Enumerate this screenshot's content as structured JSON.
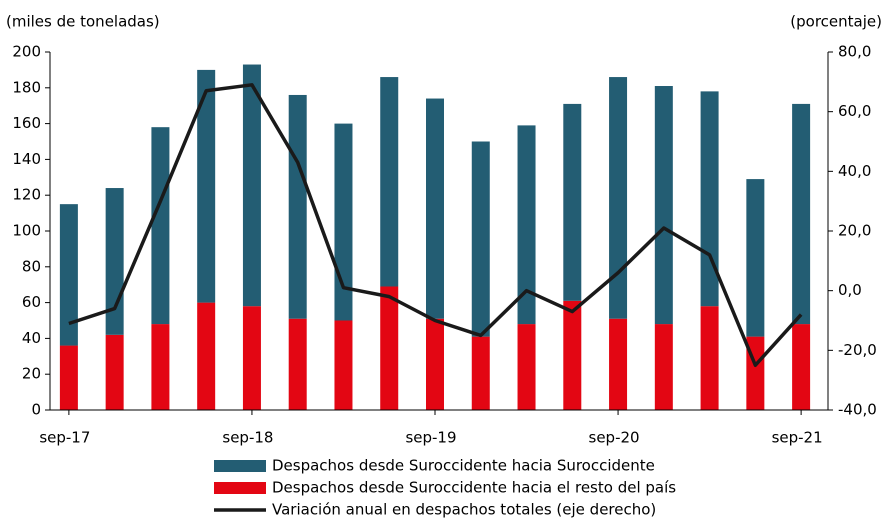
{
  "chart_data": {
    "type": "bar",
    "stacked": true,
    "y_label": "(miles de toneladas)",
    "y2_label": "(porcentaje)",
    "categories": [
      "sep-17",
      null,
      null,
      null,
      "sep-18",
      null,
      null,
      null,
      "sep-19",
      null,
      null,
      null,
      "sep-20",
      null,
      null,
      null,
      "sep-21"
    ],
    "series": [
      {
        "name": "Despachos desde Suroccidente hacia el resto del país",
        "color": "#e30613",
        "type": "bar",
        "values": [
          36,
          42,
          48,
          60,
          58,
          51,
          50,
          69,
          51,
          41,
          48,
          61,
          51,
          48,
          58,
          41,
          48
        ]
      },
      {
        "name": "Despachos desde Suroccidente hacia Suroccidente",
        "color": "#235d73",
        "type": "bar",
        "values": [
          79,
          82,
          110,
          130,
          135,
          125,
          110,
          117,
          123,
          109,
          111,
          110,
          135,
          133,
          120,
          88,
          123
        ]
      },
      {
        "name": "Variación anual en despachos totales (eje derecho)",
        "color": "#1a1a1a",
        "type": "line",
        "axis": "y2",
        "values": [
          -11,
          -6,
          30,
          67,
          69,
          43,
          1,
          -2,
          -10,
          -15,
          0,
          -7,
          6,
          21,
          12,
          -25,
          -8
        ]
      }
    ],
    "legend_order": [
      1,
      0,
      2
    ],
    "ylim": [
      0,
      200
    ],
    "yticks": [
      0,
      20,
      40,
      60,
      80,
      100,
      120,
      140,
      160,
      180,
      200
    ],
    "y2lim": [
      -40,
      80
    ],
    "y2ticks": [
      {
        "value": -40,
        "label": "-40,0"
      },
      {
        "value": -20,
        "label": "-20,0"
      },
      {
        "value": 0,
        "label": "0,0"
      },
      {
        "value": 20,
        "label": "20,0"
      },
      {
        "value": 40,
        "label": "40,0"
      },
      {
        "value": 60,
        "label": "60,0"
      },
      {
        "value": 80,
        "label": "80,0"
      }
    ],
    "grid": false
  }
}
